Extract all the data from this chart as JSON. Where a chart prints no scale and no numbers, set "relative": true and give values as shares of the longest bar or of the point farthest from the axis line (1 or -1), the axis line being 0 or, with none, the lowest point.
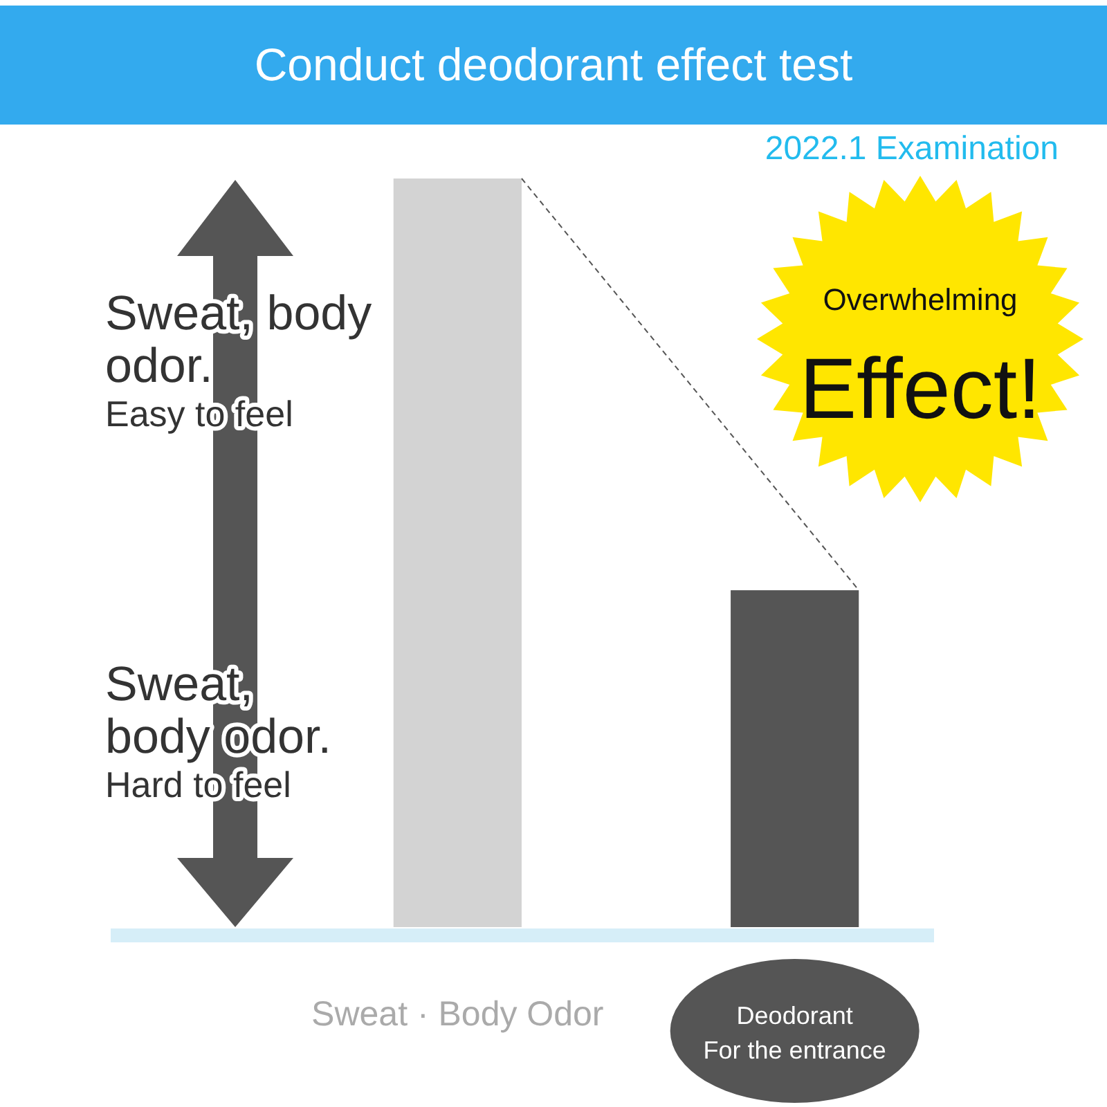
{
  "chart_data": {
    "type": "bar",
    "title": "Conduct deodorant effect test",
    "relative": true,
    "categories": [
      "Sweat · Body Odor",
      "Deodorant\nFor the entrance"
    ],
    "values": [
      1,
      0.45
    ],
    "colors": [
      "#d3d3d3",
      "#555555"
    ],
    "annotations": [
      "2022.1 Examination",
      "Overwhelming\nEffect!",
      "Sweat, body\nodor.\nEasy to feel",
      "Sweat,\nbody odor.\nHard to feel"
    ]
  }
}
